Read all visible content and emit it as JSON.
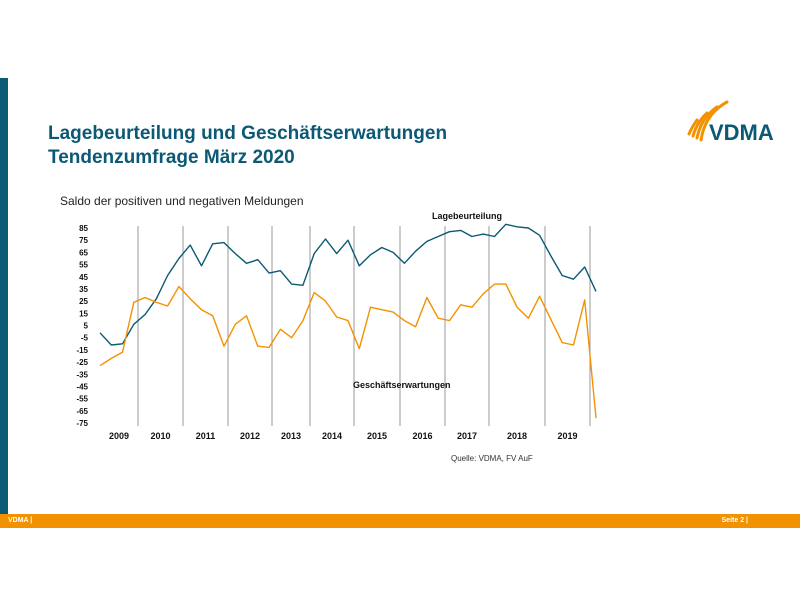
{
  "slide": {
    "title_line1": "Lagebeurteilung und Geschäftserwartungen",
    "title_line2": "Tendenzumfrage März 2020",
    "logo_text": "VDMA",
    "footer_left": "VDMA |",
    "footer_right": "Seite 2 |",
    "colors": {
      "brand_blue": "#0b5975",
      "brand_orange": "#f39200"
    }
  },
  "chart_data": {
    "type": "line",
    "title": "Saldo der positiven und negativen Meldungen",
    "source": "Quelle: VDMA, FV AuF",
    "ylim": [
      -75,
      85
    ],
    "yticks": [
      85,
      75,
      65,
      55,
      45,
      35,
      25,
      15,
      5,
      -5,
      -15,
      -25,
      -35,
      -45,
      -55,
      -65,
      -75
    ],
    "grid": "vertical year separators",
    "year_labels": [
      "2009",
      "2010",
      "2011",
      "2012",
      "2013",
      "2014",
      "2015",
      "2016",
      "2017",
      "2018",
      "2019"
    ],
    "series": [
      {
        "name": "Lagebeurteilung",
        "color": "#0b5975",
        "values": [
          -1,
          -11,
          -10,
          6,
          14,
          27,
          46,
          60,
          71,
          54,
          72,
          73,
          64,
          56,
          59,
          48,
          50,
          39,
          38,
          64,
          76,
          64,
          75,
          54,
          63,
          69,
          65,
          56,
          66,
          74,
          78,
          82,
          83,
          78,
          80,
          78,
          88,
          86,
          85,
          79,
          62,
          46,
          43,
          53,
          33
        ]
      },
      {
        "name": "Geschäftserwartungen",
        "color": "#f39200",
        "values": [
          -28,
          -22,
          -17,
          24,
          28,
          24,
          21,
          37,
          27,
          18,
          13,
          -12,
          6,
          13,
          -12,
          -13,
          2,
          -5,
          9,
          32,
          25,
          12,
          9,
          -14,
          20,
          18,
          16,
          9,
          4,
          28,
          11,
          9,
          22,
          20,
          31,
          39,
          39,
          20,
          11,
          29,
          10,
          -9,
          -11,
          26,
          -71
        ]
      }
    ]
  }
}
